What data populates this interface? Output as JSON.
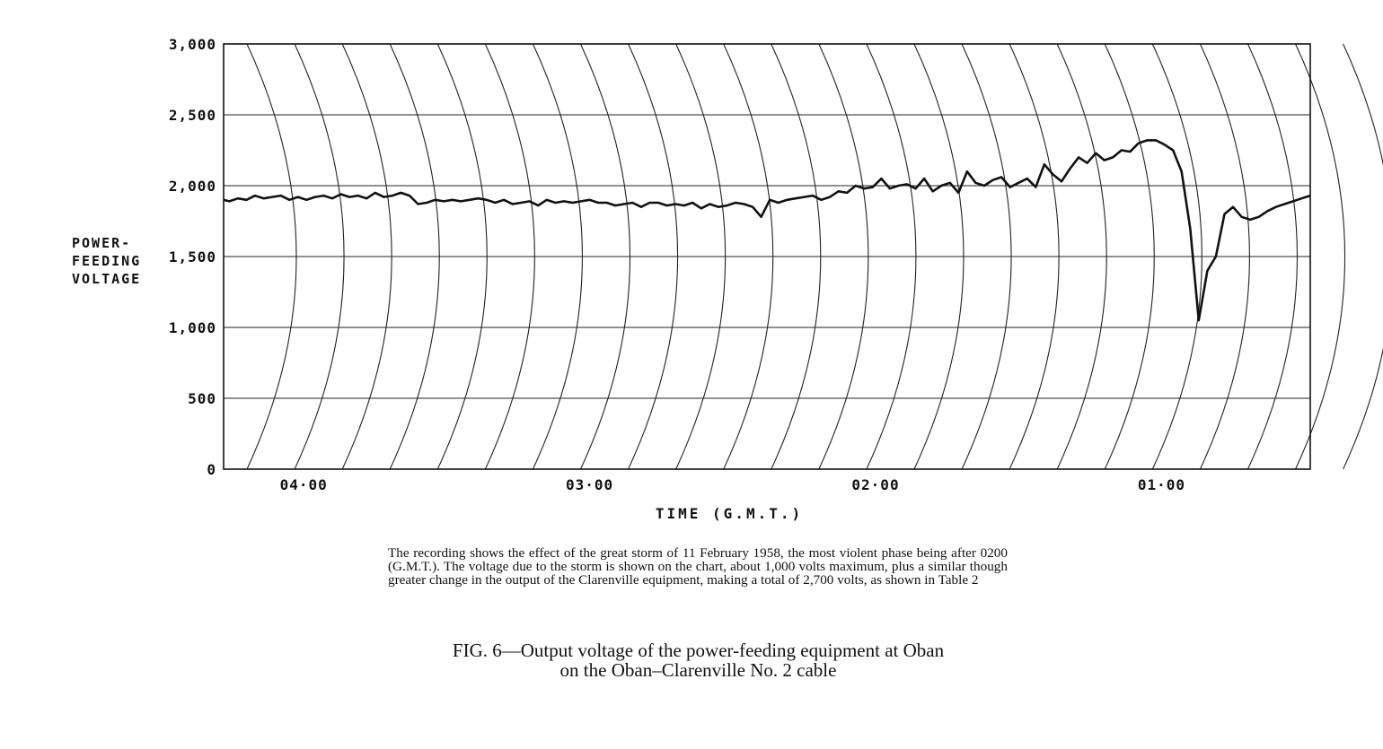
{
  "chart_data": {
    "type": "line",
    "title": "",
    "ylabel_lines": [
      "POWER-",
      "FEEDING",
      "VOLTAGE"
    ],
    "xlabel": "TIME (G.M.T.)",
    "ylim": [
      0,
      3000
    ],
    "xlim_hours": [
      4.28,
      0.48
    ],
    "x_axis_reversed": true,
    "grid": true,
    "legend": "none",
    "y_ticks": [
      {
        "value": 0,
        "label": "0"
      },
      {
        "value": 500,
        "label": "500"
      },
      {
        "value": 1000,
        "label": "1,000"
      },
      {
        "value": 1500,
        "label": "1,500"
      },
      {
        "value": 2000,
        "label": "2,000"
      },
      {
        "value": 2500,
        "label": "2,500"
      },
      {
        "value": 3000,
        "label": "3,000"
      }
    ],
    "x_ticks": [
      {
        "value": 4.0,
        "label": "04·00"
      },
      {
        "value": 3.0,
        "label": "03·00"
      },
      {
        "value": 2.0,
        "label": "02·00"
      },
      {
        "value": 1.0,
        "label": "01·00"
      }
    ],
    "series": [
      {
        "x": [
          4.28,
          4.26,
          4.23,
          4.2,
          4.17,
          4.14,
          4.11,
          4.08,
          4.05,
          4.02,
          3.99,
          3.96,
          3.93,
          3.9,
          3.87,
          3.84,
          3.81,
          3.78,
          3.75,
          3.72,
          3.69,
          3.66,
          3.63,
          3.6,
          3.57,
          3.54,
          3.51,
          3.48,
          3.45,
          3.42,
          3.39,
          3.36,
          3.33,
          3.3,
          3.27,
          3.24,
          3.21,
          3.18,
          3.15,
          3.12,
          3.09,
          3.06,
          3.03,
          3.0,
          2.97,
          2.94,
          2.91,
          2.88,
          2.85,
          2.82,
          2.79,
          2.76,
          2.73,
          2.7,
          2.67,
          2.64,
          2.61,
          2.58,
          2.55,
          2.52,
          2.49,
          2.46,
          2.43,
          2.4,
          2.37,
          2.34,
          2.31,
          2.28,
          2.25,
          2.22,
          2.19,
          2.16,
          2.13,
          2.1,
          2.07,
          2.04,
          2.01,
          1.98,
          1.95,
          1.92,
          1.89,
          1.86,
          1.83,
          1.8,
          1.77,
          1.74,
          1.71,
          1.68,
          1.65,
          1.62,
          1.59,
          1.56,
          1.53,
          1.5,
          1.47,
          1.44,
          1.41,
          1.38,
          1.35,
          1.32,
          1.29,
          1.26,
          1.23,
          1.2,
          1.17,
          1.14,
          1.11,
          1.08,
          1.05,
          1.02,
          0.99,
          0.96,
          0.93,
          0.9,
          0.87,
          0.84,
          0.81,
          0.78,
          0.75,
          0.72,
          0.69,
          0.66,
          0.63,
          0.6,
          0.57,
          0.54,
          0.51,
          0.48
        ],
        "y": [
          1900,
          1890,
          1910,
          1900,
          1930,
          1910,
          1920,
          1930,
          1900,
          1920,
          1900,
          1920,
          1930,
          1910,
          1940,
          1920,
          1930,
          1910,
          1950,
          1920,
          1930,
          1950,
          1930,
          1870,
          1880,
          1900,
          1890,
          1900,
          1890,
          1900,
          1910,
          1900,
          1880,
          1900,
          1870,
          1880,
          1890,
          1860,
          1900,
          1880,
          1890,
          1880,
          1890,
          1900,
          1880,
          1880,
          1860,
          1870,
          1880,
          1850,
          1880,
          1880,
          1860,
          1870,
          1860,
          1880,
          1840,
          1870,
          1850,
          1860,
          1880,
          1870,
          1850,
          1780,
          1900,
          1880,
          1900,
          1910,
          1920,
          1930,
          1900,
          1920,
          1960,
          1950,
          2000,
          1980,
          1990,
          2050,
          1980,
          2000,
          2010,
          1980,
          2050,
          1960,
          2000,
          2020,
          1950,
          2100,
          2020,
          2000,
          2040,
          2060,
          1990,
          2020,
          2050,
          1990,
          2150,
          2080,
          2030,
          2120,
          2200,
          2160,
          2230,
          2180,
          2200,
          2250,
          2240,
          2300,
          2320,
          2320,
          2290,
          2250,
          2100,
          1700,
          1050,
          1400,
          1500,
          1800,
          1850,
          1780,
          1760,
          1780,
          1820,
          1850,
          1870,
          1890,
          1910,
          1930
        ]
      }
    ]
  },
  "caption": "The recording shows the effect of the great storm of 11 February 1958, the most violent phase being after 0200 (G.M.T.). The voltage due to the storm is shown on the chart, about 1,000 volts maximum, plus a similar though greater change in the output of the Clarenville equipment, making a total of 2,700 volts, as shown in Table 2",
  "figure_title_line1": "FIG. 6—Output voltage of the power-feeding equipment at Oban",
  "figure_title_line2": "on the Oban–Clarenville No. 2 cable"
}
